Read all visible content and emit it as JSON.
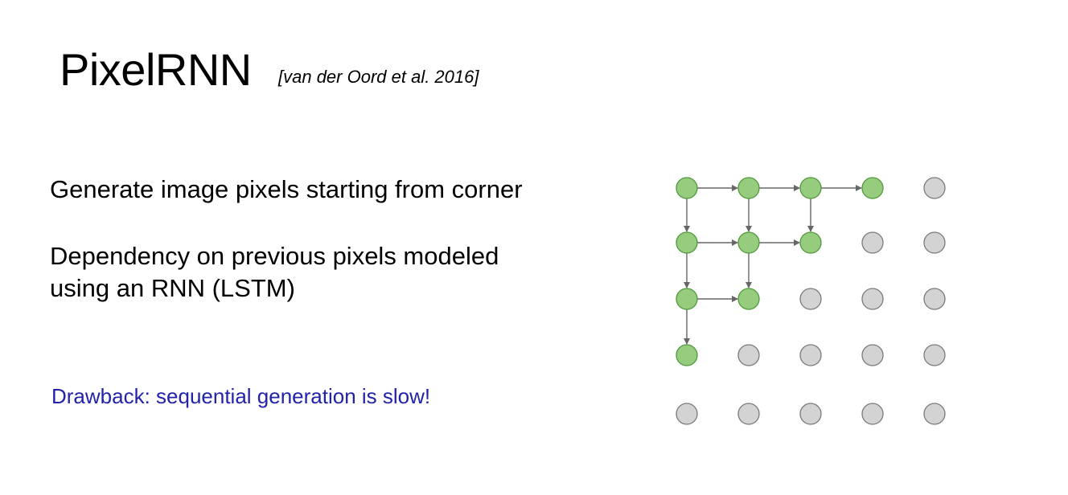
{
  "title": "PixelRNN",
  "citation": "[van der Oord et al. 2016]",
  "bullets": {
    "first": "Generate image pixels starting from corner",
    "second_line1": "Dependency on previous pixels modeled",
    "second_line2": "using an RNN (LSTM)"
  },
  "drawback": "Drawback: sequential generation is slow!",
  "colors": {
    "generated_fill": "#97cc7f",
    "generated_stroke": "#4f9a3a",
    "pending_fill": "#d3d3d3",
    "pending_stroke": "#7a7a7a",
    "arrow": "#666666",
    "drawback_text": "#2222aa"
  },
  "grid": {
    "rows": 5,
    "cols": 5,
    "generated": [
      [
        1,
        1,
        1,
        1,
        0
      ],
      [
        1,
        1,
        1,
        0,
        0
      ],
      [
        1,
        1,
        0,
        0,
        0
      ],
      [
        1,
        0,
        0,
        0,
        0
      ],
      [
        0,
        0,
        0,
        0,
        0
      ]
    ]
  }
}
